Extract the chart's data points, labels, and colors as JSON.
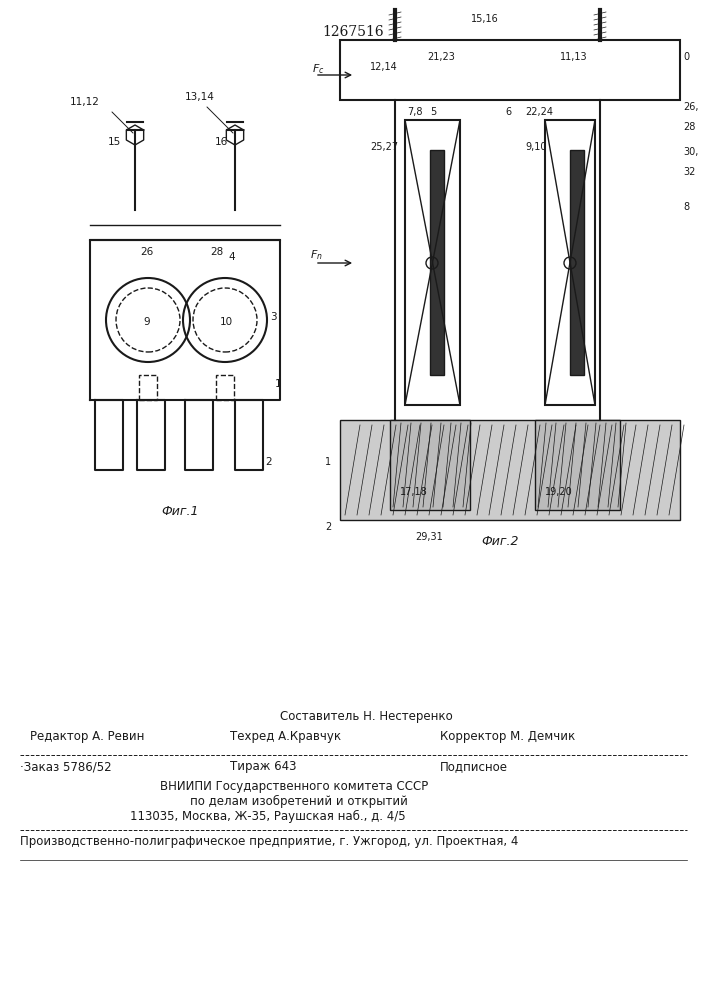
{
  "patent_number": "1267516",
  "bg_color": "#ffffff",
  "line_color": "#1a1a1a",
  "fig1_caption": "Фиг.1",
  "fig2_caption": "Фиг.2",
  "footer": {
    "sestavitel_label": "Составитель Н. Нестеренко",
    "redaktor": "Редактор А. Ревин",
    "tehred": "Техред А.Кравчук",
    "korrektor": "Корректор М. Демчик",
    "zakaz": "·Заказ 5786/52",
    "tirazh": "Тираж 643",
    "podpisnoe": "Подписное",
    "vnipi_line1": "ВНИИПИ Государственного комитета СССР",
    "vnipi_line2": "по делам изобретений и открытий",
    "vnipi_line3": "113035, Москва, Ж-35, Раушская наб., д. 4/5",
    "production": "Производственно-полиграфическое предприятие, г. Ужгород, ул. Проектная, 4"
  }
}
